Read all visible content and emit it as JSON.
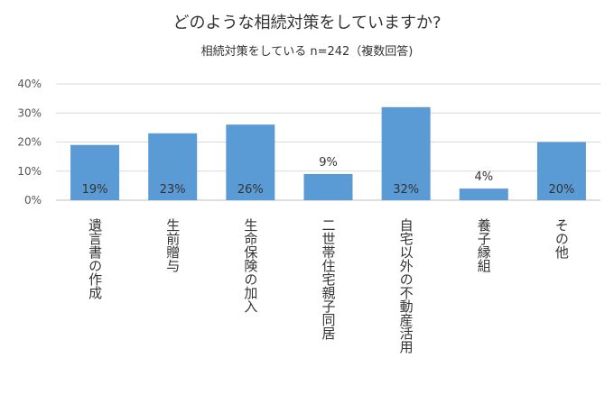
{
  "chart_data": {
    "type": "bar",
    "title": "どのような相続対策をしていますか?",
    "subtitle": "相続対策をしている n=242（複数回答)",
    "categories": [
      "遺言書の作成",
      "生前贈与",
      "生命保険の加入",
      "二世帯住宅親子同居",
      "自宅以外の不動産活用",
      "養子縁組",
      "その他"
    ],
    "values": [
      19,
      23,
      26,
      9,
      32,
      4,
      20
    ],
    "data_labels": [
      "19%",
      "23%",
      "26%",
      "9%",
      "32%",
      "4%",
      "20%"
    ],
    "y_ticks": [
      "0%",
      "10%",
      "20%",
      "30%",
      "40%"
    ],
    "y_tick_values": [
      0,
      10,
      20,
      30,
      40
    ],
    "ylim": [
      0,
      40
    ],
    "xlabel": "",
    "ylabel": "",
    "grid": true,
    "bar_color": "#5b9bd5",
    "grid_color": "#d9d9d9",
    "label_inside_color": "#333333",
    "label_outside_color": "#333333"
  }
}
